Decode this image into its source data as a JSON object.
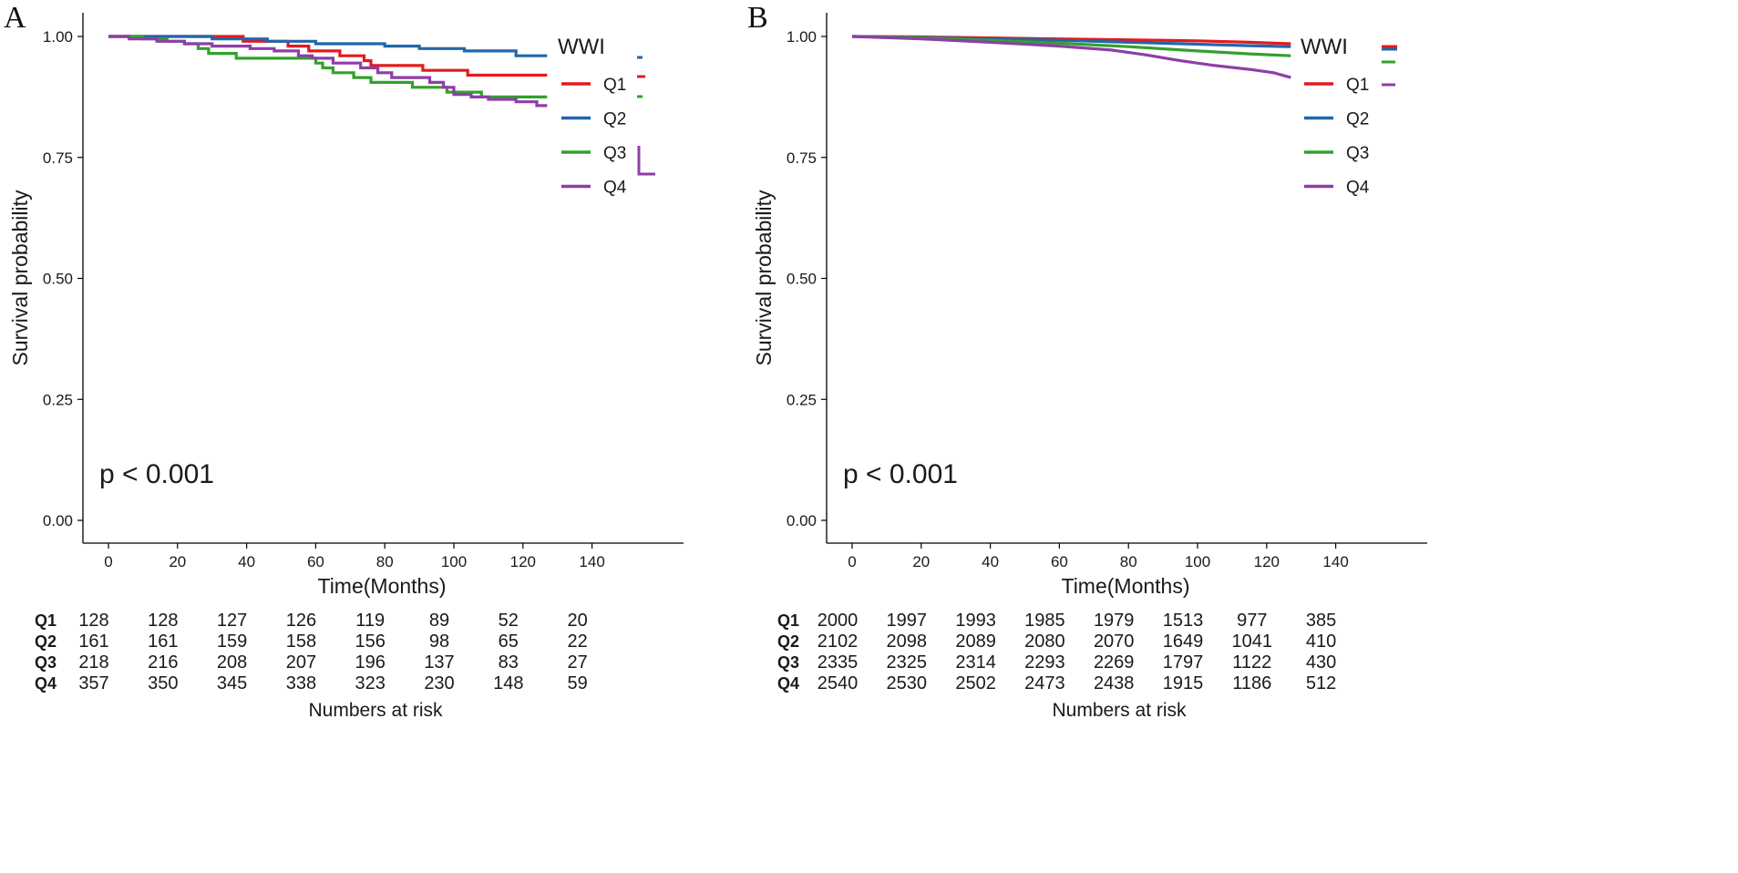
{
  "figure": {
    "panels": [
      "A",
      "B"
    ]
  },
  "chart_data": [
    {
      "type": "line",
      "subtype": "kaplan-meier",
      "panel_label": "A",
      "xlabel": "Time(Months)",
      "ylabel": "Survival probability",
      "xlim": [
        -8,
        168
      ],
      "ylim": [
        -0.05,
        1.05
      ],
      "x_ticks": [
        0,
        20,
        40,
        60,
        80,
        100,
        120,
        140
      ],
      "y_ticks": [
        0,
        0.25,
        0.5,
        0.75,
        1.0
      ],
      "y_tick_labels": [
        "0.00",
        "0.25",
        "0.50",
        "0.75",
        "1.00"
      ],
      "pvalue_text": "p < 0.001",
      "legend": {
        "title": "WWI",
        "placement": "top-right",
        "entries": [
          "Q1",
          "Q2",
          "Q3",
          "Q4"
        ]
      },
      "series": [
        {
          "name": "Q1",
          "color": "#e41a1c",
          "points": [
            [
              0,
              1.0
            ],
            [
              39,
              1.0
            ],
            [
              39,
              0.99
            ],
            [
              52,
              0.99
            ],
            [
              52,
              0.98
            ],
            [
              58,
              0.98
            ],
            [
              58,
              0.97
            ],
            [
              67,
              0.97
            ],
            [
              67,
              0.96
            ],
            [
              74,
              0.96
            ],
            [
              74,
              0.95
            ],
            [
              76,
              0.95
            ],
            [
              76,
              0.94
            ],
            [
              91,
              0.94
            ],
            [
              91,
              0.93
            ],
            [
              104,
              0.93
            ],
            [
              104,
              0.92
            ],
            [
              127,
              0.92
            ]
          ]
        },
        {
          "name": "Q2",
          "color": "#2166ac",
          "points": [
            [
              0,
              1.0
            ],
            [
              30,
              1.0
            ],
            [
              30,
              0.995
            ],
            [
              46,
              0.995
            ],
            [
              46,
              0.99
            ],
            [
              60,
              0.99
            ],
            [
              60,
              0.985
            ],
            [
              80,
              0.985
            ],
            [
              80,
              0.98
            ],
            [
              90,
              0.98
            ],
            [
              90,
              0.975
            ],
            [
              103,
              0.975
            ],
            [
              103,
              0.97
            ],
            [
              118,
              0.97
            ],
            [
              118,
              0.96
            ],
            [
              127,
              0.96
            ]
          ]
        },
        {
          "name": "Q3",
          "color": "#33a02c",
          "points": [
            [
              0,
              1.0
            ],
            [
              10,
              1.0
            ],
            [
              10,
              0.995
            ],
            [
              17,
              0.995
            ],
            [
              17,
              0.99
            ],
            [
              22,
              0.99
            ],
            [
              22,
              0.985
            ],
            [
              26,
              0.985
            ],
            [
              26,
              0.975
            ],
            [
              29,
              0.975
            ],
            [
              29,
              0.965
            ],
            [
              37,
              0.965
            ],
            [
              37,
              0.955
            ],
            [
              60,
              0.955
            ],
            [
              60,
              0.945
            ],
            [
              62,
              0.945
            ],
            [
              62,
              0.935
            ],
            [
              65,
              0.935
            ],
            [
              65,
              0.925
            ],
            [
              71,
              0.925
            ],
            [
              71,
              0.915
            ],
            [
              76,
              0.915
            ],
            [
              76,
              0.905
            ],
            [
              88,
              0.905
            ],
            [
              88,
              0.895
            ],
            [
              98,
              0.895
            ],
            [
              98,
              0.885
            ],
            [
              108,
              0.885
            ],
            [
              108,
              0.875
            ],
            [
              127,
              0.875
            ]
          ]
        },
        {
          "name": "Q4",
          "color": "#8e3ea8",
          "points": [
            [
              0,
              1.0
            ],
            [
              6,
              1.0
            ],
            [
              6,
              0.995
            ],
            [
              14,
              0.995
            ],
            [
              14,
              0.99
            ],
            [
              22,
              0.99
            ],
            [
              22,
              0.985
            ],
            [
              30,
              0.985
            ],
            [
              30,
              0.98
            ],
            [
              41,
              0.98
            ],
            [
              41,
              0.975
            ],
            [
              48,
              0.975
            ],
            [
              48,
              0.97
            ],
            [
              55,
              0.97
            ],
            [
              55,
              0.96
            ],
            [
              59,
              0.96
            ],
            [
              59,
              0.955
            ],
            [
              65,
              0.955
            ],
            [
              65,
              0.945
            ],
            [
              73,
              0.945
            ],
            [
              73,
              0.935
            ],
            [
              78,
              0.935
            ],
            [
              78,
              0.925
            ],
            [
              82,
              0.925
            ],
            [
              82,
              0.915
            ],
            [
              93,
              0.915
            ],
            [
              93,
              0.905
            ],
            [
              97,
              0.905
            ],
            [
              97,
              0.895
            ],
            [
              100,
              0.895
            ],
            [
              100,
              0.88
            ],
            [
              105,
              0.88
            ],
            [
              105,
              0.875
            ],
            [
              110,
              0.875
            ],
            [
              110,
              0.87
            ],
            [
              118,
              0.87
            ],
            [
              118,
              0.865
            ],
            [
              124,
              0.865
            ],
            [
              124,
              0.857
            ],
            [
              127,
              0.857
            ]
          ]
        }
      ],
      "risk_table": {
        "title": "Numbers at risk",
        "times": [
          0,
          20,
          40,
          60,
          80,
          100,
          120,
          140
        ],
        "rows": [
          {
            "label": "Q1",
            "values": [
              "128",
              "128",
              "127",
              "126",
              "119",
              "89",
              "52",
              "20"
            ]
          },
          {
            "label": "Q2",
            "values": [
              "161",
              "161",
              "159",
              "158",
              "156",
              "98",
              "65",
              "22"
            ]
          },
          {
            "label": "Q3",
            "values": [
              "218",
              "216",
              "208",
              "207",
              "196",
              "137",
              "83",
              "27"
            ]
          },
          {
            "label": "Q4",
            "values": [
              "357",
              "350",
              "345",
              "338",
              "323",
              "230",
              "148",
              "59"
            ]
          }
        ]
      }
    },
    {
      "type": "line",
      "subtype": "kaplan-meier",
      "panel_label": "B",
      "xlabel": "Time(Months)",
      "ylabel": "Survival probability",
      "xlim": [
        -8,
        168
      ],
      "ylim": [
        -0.05,
        1.05
      ],
      "x_ticks": [
        0,
        20,
        40,
        60,
        80,
        100,
        120,
        140
      ],
      "y_ticks": [
        0,
        0.25,
        0.5,
        0.75,
        1.0
      ],
      "y_tick_labels": [
        "0.00",
        "0.25",
        "0.50",
        "0.75",
        "1.00"
      ],
      "pvalue_text": "p < 0.001",
      "legend": {
        "title": "WWI",
        "placement": "top-right",
        "entries": [
          "Q1",
          "Q2",
          "Q3",
          "Q4"
        ]
      },
      "series": [
        {
          "name": "Q1",
          "color": "#e41a1c",
          "points": [
            [
              0,
              1.0
            ],
            [
              20,
              0.999
            ],
            [
              40,
              0.997
            ],
            [
              60,
              0.995
            ],
            [
              80,
              0.993
            ],
            [
              100,
              0.991
            ],
            [
              115,
              0.988
            ],
            [
              127,
              0.985
            ]
          ]
        },
        {
          "name": "Q2",
          "color": "#2166ac",
          "points": [
            [
              0,
              1.0
            ],
            [
              20,
              0.998
            ],
            [
              40,
              0.995
            ],
            [
              60,
              0.992
            ],
            [
              80,
              0.988
            ],
            [
              100,
              0.984
            ],
            [
              115,
              0.981
            ],
            [
              127,
              0.979
            ]
          ]
        },
        {
          "name": "Q3",
          "color": "#33a02c",
          "points": [
            [
              0,
              1.0
            ],
            [
              20,
              0.997
            ],
            [
              40,
              0.992
            ],
            [
              60,
              0.986
            ],
            [
              80,
              0.979
            ],
            [
              100,
              0.97
            ],
            [
              115,
              0.964
            ],
            [
              127,
              0.96
            ]
          ]
        },
        {
          "name": "Q4",
          "color": "#8e3ea8",
          "points": [
            [
              0,
              1.0
            ],
            [
              20,
              0.995
            ],
            [
              40,
              0.988
            ],
            [
              60,
              0.98
            ],
            [
              75,
              0.972
            ],
            [
              85,
              0.962
            ],
            [
              95,
              0.95
            ],
            [
              105,
              0.94
            ],
            [
              115,
              0.932
            ],
            [
              122,
              0.925
            ],
            [
              127,
              0.915
            ]
          ]
        }
      ],
      "risk_table": {
        "title": "Numbers at risk",
        "times": [
          0,
          20,
          40,
          60,
          80,
          100,
          120,
          140
        ],
        "rows": [
          {
            "label": "Q1",
            "values": [
              "2000",
              "1997",
              "1993",
              "1985",
              "1979",
              "1513",
              "977",
              "385"
            ]
          },
          {
            "label": "Q2",
            "values": [
              "2102",
              "2098",
              "2089",
              "2080",
              "2070",
              "1649",
              "1041",
              "410"
            ]
          },
          {
            "label": "Q3",
            "values": [
              "2335",
              "2325",
              "2314",
              "2293",
              "2269",
              "1797",
              "1122",
              "430"
            ]
          },
          {
            "label": "Q4",
            "values": [
              "2540",
              "2530",
              "2502",
              "2473",
              "2438",
              "1915",
              "1186",
              "512"
            ]
          }
        ]
      }
    }
  ]
}
